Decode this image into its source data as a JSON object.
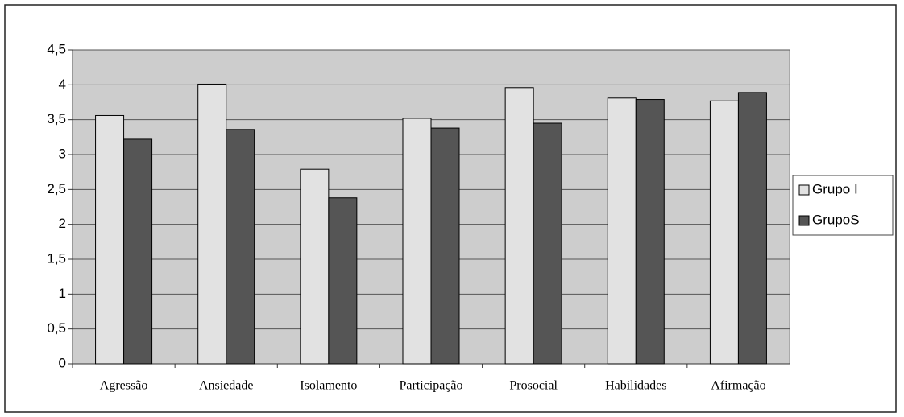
{
  "chart_data": {
    "type": "bar",
    "categories": [
      "Agressão",
      "Ansiedade",
      "Isolamento",
      "Participação",
      "Prosocial",
      "Habilidades",
      "Afirmação"
    ],
    "series": [
      {
        "name": "Grupo I",
        "color": "#e2e2e2",
        "values": [
          3.56,
          4.01,
          2.79,
          3.52,
          3.96,
          3.81,
          3.77
        ]
      },
      {
        "name": "GrupoS",
        "color": "#555555",
        "values": [
          3.22,
          3.36,
          2.38,
          3.38,
          3.45,
          3.79,
          3.89
        ]
      }
    ],
    "ylim": [
      0,
      4.5
    ],
    "yticks": [
      0,
      {
        "value": 0.5,
        "label": "0,5"
      },
      1,
      {
        "value": 1.5,
        "label": "1,5"
      },
      2,
      {
        "value": 2.5,
        "label": "2,5"
      },
      3,
      {
        "value": 3.5,
        "label": "3,5"
      },
      4,
      {
        "value": 4.5,
        "label": "4,5"
      }
    ],
    "grid": true,
    "legend": "right"
  }
}
